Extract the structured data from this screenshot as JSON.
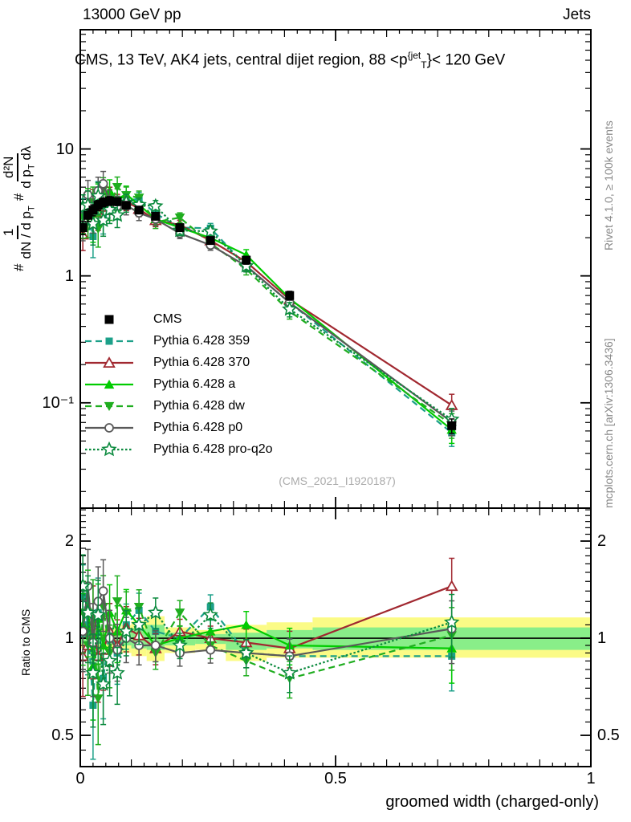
{
  "header": {
    "left": "13000 GeV pp",
    "right": "Jets"
  },
  "panel_title": {
    "prefix": "CMS, 13 TeV, AK4 jets, central dijet region, 88 <p",
    "sup": "{jet",
    "sub": "T",
    "suffix": "}< 120 GeV"
  },
  "y_axis_label": {
    "hash1": "#",
    "frac1_num": "1",
    "frac1_den": "dN / d p",
    "frac1_den_sub": "T",
    "hash2": "#",
    "frac2_num": "d²N",
    "frac2_den": "d p",
    "frac2_den_sub": "T",
    "frac2_den_post": " dλ"
  },
  "ratio_axis_label": "Ratio to CMS",
  "x_axis_label": "groomed width (charged-only)",
  "watermark": "(CMS_2021_I1920187)",
  "credits": {
    "top": "Rivet 4.1.0, ≥ 100k events",
    "bottom": "mcplots.cern.ch [arXiv:1306.3436]"
  },
  "chart_data": {
    "type": "line",
    "title": "CMS, 13 TeV, AK4 jets, central dijet region, 88 <pT_jet< 120 GeV",
    "xlabel": "groomed width (charged-only)",
    "ylabel": "# 1/(dN/dpT) # d²N/(dpT dλ)",
    "ratio_ylabel": "Ratio to CMS",
    "legend_position": "middle-left",
    "grid": false,
    "axes": {
      "x": {
        "min": 0,
        "max": 1,
        "major": [
          0,
          0.5,
          1
        ],
        "major_labels": [
          "0",
          "0.5",
          "1"
        ],
        "medium_step": 0.1,
        "minor_step": 0.025
      },
      "y_main": {
        "log": true,
        "min": 0.0148,
        "max": 87,
        "ticks": [
          {
            "v": 10,
            "label": "10"
          },
          {
            "v": 1,
            "label": "1"
          },
          {
            "v": 0.1,
            "label": "10⁻¹"
          }
        ]
      },
      "y_ratio": {
        "log": true,
        "min": 0.4,
        "max": 2.53,
        "ticks": [
          {
            "v": 2,
            "label": "2"
          },
          {
            "v": 1,
            "label": "1"
          },
          {
            "v": 0.5,
            "label": "0.5"
          }
        ]
      }
    },
    "x": [
      0.005,
      0.015,
      0.025,
      0.035,
      0.045,
      0.0575,
      0.0725,
      0.09,
      0.115,
      0.1475,
      0.195,
      0.255,
      0.325,
      0.41,
      0.7275
    ],
    "bin_edges": [
      0,
      0.01,
      0.02,
      0.03,
      0.04,
      0.05,
      0.065,
      0.08,
      0.1,
      0.13,
      0.165,
      0.225,
      0.285,
      0.365,
      0.455,
      1.0
    ],
    "cms": {
      "label": "CMS",
      "color": "#000000",
      "marker": "square",
      "values": [
        2.4,
        3.0,
        3.3,
        3.6,
        3.8,
        3.9,
        3.85,
        3.6,
        3.3,
        2.95,
        2.4,
        1.9,
        1.33,
        0.7,
        0.066
      ],
      "rel_err": [
        0.12,
        0.11,
        0.1,
        0.09,
        0.08,
        0.08,
        0.07,
        0.06,
        0.06,
        0.06,
        0.06,
        0.06,
        0.07,
        0.08,
        0.13
      ]
    },
    "mc_rel_err": [
      0.25,
      0.3,
      0.32,
      0.28,
      0.25,
      0.22,
      0.2,
      0.16,
      0.13,
      0.11,
      0.09,
      0.09,
      0.1,
      0.13,
      0.22
    ],
    "series": [
      {
        "name": "Pythia 6.428 359",
        "color": "#1CA089",
        "dash": "8,5",
        "marker": "square",
        "ratio": [
          1.35,
          1.1,
          0.62,
          1.2,
          0.75,
          1.05,
          0.9,
          1.1,
          1.22,
          1.05,
          1.0,
          1.25,
          0.9,
          0.88,
          0.88
        ]
      },
      {
        "name": "Pythia 6.428 370",
        "color": "#A12830",
        "dash": "",
        "marker": "triangle-open",
        "ratio": [
          0.88,
          0.95,
          1.1,
          0.88,
          0.92,
          1.05,
          0.95,
          1.08,
          1.02,
          0.93,
          1.05,
          1.0,
          0.97,
          0.93,
          1.45
        ]
      },
      {
        "name": "Pythia 6.428 a",
        "color": "#00CC00",
        "dash": "",
        "marker": "triangle",
        "ratio": [
          1.1,
          1.25,
          0.82,
          1.15,
          0.95,
          1.2,
          1.05,
          1.22,
          1.1,
          0.95,
          1.0,
          1.05,
          1.1,
          0.95,
          0.93
        ]
      },
      {
        "name": "Pythia 6.428 dw",
        "color": "#1FAD1F",
        "dash": "8,5",
        "marker": "triangle-down",
        "ratio": [
          1.2,
          0.95,
          1.15,
          0.65,
          1.25,
          0.9,
          1.3,
          1.2,
          1.25,
          0.9,
          1.2,
          0.95,
          0.85,
          0.75,
          1.02
        ]
      },
      {
        "name": "Pythia 6.428 p0",
        "color": "#595959",
        "dash": "",
        "marker": "circle-open",
        "ratio": [
          1.05,
          1.45,
          0.97,
          1.3,
          1.4,
          1.0,
          0.92,
          1.0,
          0.95,
          0.95,
          0.9,
          0.92,
          0.9,
          0.88,
          1.07
        ]
      },
      {
        "name": "Pythia 6.428 pro-q2o",
        "color": "#0B8A3E",
        "dash": "2.5,2.5",
        "marker": "star-open",
        "ratio": [
          1.45,
          1.2,
          0.78,
          1.18,
          0.72,
          0.85,
          0.78,
          1.05,
          1.1,
          1.2,
          0.95,
          1.18,
          0.9,
          0.78,
          1.12
        ]
      }
    ],
    "uncertainty_bands": {
      "yellow": {
        "color": "#FBFB86",
        "lo": [
          0.93,
          0.93,
          0.93,
          0.93,
          0.93,
          0.93,
          0.93,
          0.9,
          0.88,
          0.85,
          0.9,
          0.92,
          0.85,
          0.87,
          0.87
        ],
        "hi": [
          1.07,
          1.07,
          1.07,
          1.07,
          1.07,
          1.07,
          1.07,
          1.1,
          1.13,
          1.17,
          1.08,
          1.06,
          1.1,
          1.12,
          1.16
        ]
      },
      "green": {
        "color": "#89EE89",
        "lo": [
          0.96,
          0.96,
          0.96,
          0.96,
          0.96,
          0.96,
          0.96,
          0.95,
          0.93,
          0.92,
          0.95,
          0.96,
          0.92,
          0.93,
          0.92
        ],
        "hi": [
          1.04,
          1.04,
          1.04,
          1.04,
          1.04,
          1.04,
          1.04,
          1.05,
          1.07,
          1.1,
          1.04,
          1.03,
          1.04,
          1.06,
          1.08
        ]
      }
    }
  }
}
